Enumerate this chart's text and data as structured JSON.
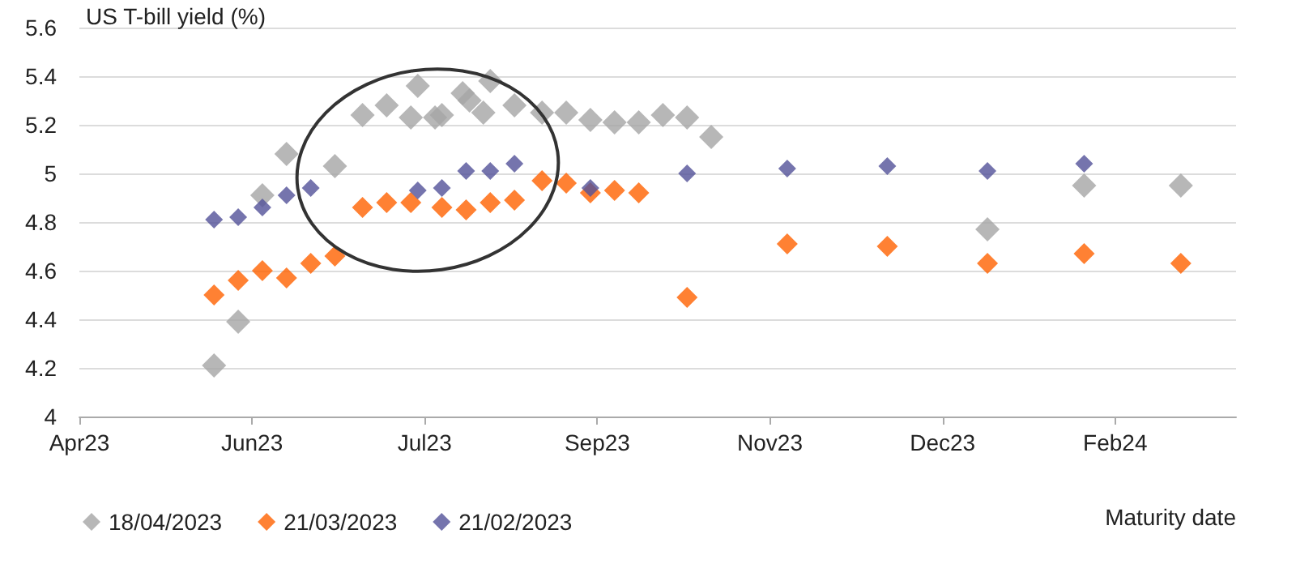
{
  "chart_data": {
    "type": "scatter",
    "ylabel": "US T-bill yield (%)",
    "xlabel": "Maturity date",
    "xlim": [
      "2023-04-18",
      "2024-03-18"
    ],
    "xticks": [
      {
        "value": "2023-04-18",
        "label": "Apr23"
      },
      {
        "value": "2023-06-07",
        "label": "Jun23"
      },
      {
        "value": "2023-07-27",
        "label": "Jul23"
      },
      {
        "value": "2023-09-15",
        "label": "Sep23"
      },
      {
        "value": "2023-11-04",
        "label": "Nov23"
      },
      {
        "value": "2023-12-24",
        "label": "Dec23"
      },
      {
        "value": "2024-02-12",
        "label": "Feb24"
      }
    ],
    "ylim": [
      4,
      5.6
    ],
    "yticks": [
      4,
      4.2,
      4.4,
      4.6,
      4.8,
      5,
      5.2,
      5.4,
      5.6
    ],
    "grid": "y",
    "legend": "bottom left",
    "marker": "diamond",
    "series": [
      {
        "name": "18/04/2023",
        "color": "#a5a5a5",
        "x": [
          "2023-05-27",
          "2023-06-03",
          "2023-06-10",
          "2023-06-17",
          "2023-07-01",
          "2023-07-09",
          "2023-07-16",
          "2023-07-23",
          "2023-07-25",
          "2023-07-30",
          "2023-08-01",
          "2023-08-07",
          "2023-08-09",
          "2023-08-13",
          "2023-08-15",
          "2023-08-22",
          "2023-08-30",
          "2023-09-06",
          "2023-09-13",
          "2023-09-20",
          "2023-09-27",
          "2023-10-04",
          "2023-10-11",
          "2023-10-18",
          "2024-01-06",
          "2024-02-03",
          "2024-03-02"
        ],
        "values": [
          4.21,
          4.39,
          4.91,
          5.08,
          5.03,
          5.24,
          5.28,
          5.23,
          5.36,
          5.23,
          5.24,
          5.33,
          5.3,
          5.25,
          5.38,
          5.28,
          5.25,
          5.25,
          5.22,
          5.21,
          5.21,
          5.24,
          5.23,
          5.15,
          4.77,
          4.95,
          4.95
        ]
      },
      {
        "name": "21/03/2023",
        "color": "#ff6200",
        "x": [
          "2023-05-27",
          "2023-06-03",
          "2023-06-10",
          "2023-06-17",
          "2023-06-24",
          "2023-07-01",
          "2023-07-09",
          "2023-07-16",
          "2023-07-23",
          "2023-08-01",
          "2023-08-08",
          "2023-08-15",
          "2023-08-22",
          "2023-08-30",
          "2023-09-06",
          "2023-09-13",
          "2023-09-20",
          "2023-09-27",
          "2023-10-11",
          "2023-11-09",
          "2023-12-08",
          "2024-01-06",
          "2024-02-03",
          "2024-03-02"
        ],
        "values": [
          4.5,
          4.56,
          4.6,
          4.57,
          4.63,
          4.66,
          4.86,
          4.88,
          4.88,
          4.86,
          4.85,
          4.88,
          4.89,
          4.97,
          4.96,
          4.92,
          4.93,
          4.92,
          4.49,
          4.71,
          4.7,
          4.63,
          4.67,
          4.63
        ]
      },
      {
        "name": "21/02/2023",
        "color": "#525199",
        "x": [
          "2023-05-27",
          "2023-06-03",
          "2023-06-10",
          "2023-06-17",
          "2023-06-24",
          "2023-07-25",
          "2023-08-01",
          "2023-08-08",
          "2023-08-15",
          "2023-08-22",
          "2023-09-13",
          "2023-10-11",
          "2023-11-09",
          "2023-12-08",
          "2024-01-06",
          "2024-02-03"
        ],
        "values": [
          4.81,
          4.82,
          4.86,
          4.91,
          4.94,
          4.93,
          4.94,
          5.01,
          5.01,
          5.04,
          4.94,
          5.0,
          5.02,
          5.03,
          5.01,
          5.04
        ]
      }
    ]
  }
}
